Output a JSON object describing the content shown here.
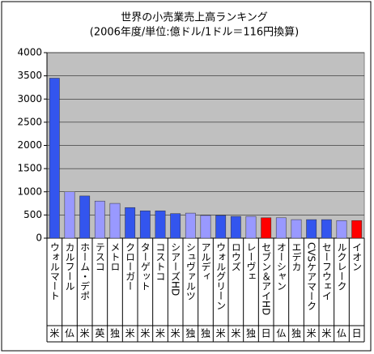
{
  "chart_data": {
    "type": "bar",
    "title": "世界の小売業売上高ランキング",
    "subtitle": "(2006年度/単位:億ドル/1ドル＝116円換算)",
    "categories": [
      "ウォルマート",
      "カルフール",
      "ホーム・デポ",
      "テスコ",
      "メトロ",
      "クローガー",
      "ターゲット",
      "コストコ",
      "シアーズHD",
      "シュヴァルツ",
      "アルディ",
      "ウォルグリーン",
      "ロウズ",
      "レーヴェ",
      "セブン＆アイHD",
      "オーシャン",
      "エデカ",
      "CVSケアマーク",
      "セーフウェイ",
      "ルクレーク",
      "イオン"
    ],
    "countries": [
      "米",
      "仏",
      "米",
      "英",
      "独",
      "米",
      "米",
      "米",
      "米",
      "独",
      "独",
      "米",
      "米",
      "独",
      "日",
      "仏",
      "独",
      "米",
      "米",
      "仏",
      "日"
    ],
    "values": [
      3450,
      1000,
      910,
      800,
      750,
      660,
      590,
      590,
      530,
      540,
      490,
      490,
      470,
      470,
      440,
      440,
      400,
      400,
      400,
      380,
      380
    ],
    "colors": [
      "#3355ee",
      "#9999ff",
      "#3355ee",
      "#9999ff",
      "#9999ff",
      "#3355ee",
      "#3355ee",
      "#3355ee",
      "#3355ee",
      "#9999ff",
      "#9999ff",
      "#3355ee",
      "#3355ee",
      "#9999ff",
      "#ff0000",
      "#9999ff",
      "#9999ff",
      "#3355ee",
      "#3355ee",
      "#9999ff",
      "#ff0000"
    ],
    "ylim": [
      0,
      4000
    ],
    "yticks": [
      0,
      500,
      1000,
      1500,
      2000,
      2500,
      3000,
      3500,
      4000
    ],
    "grid": true
  }
}
